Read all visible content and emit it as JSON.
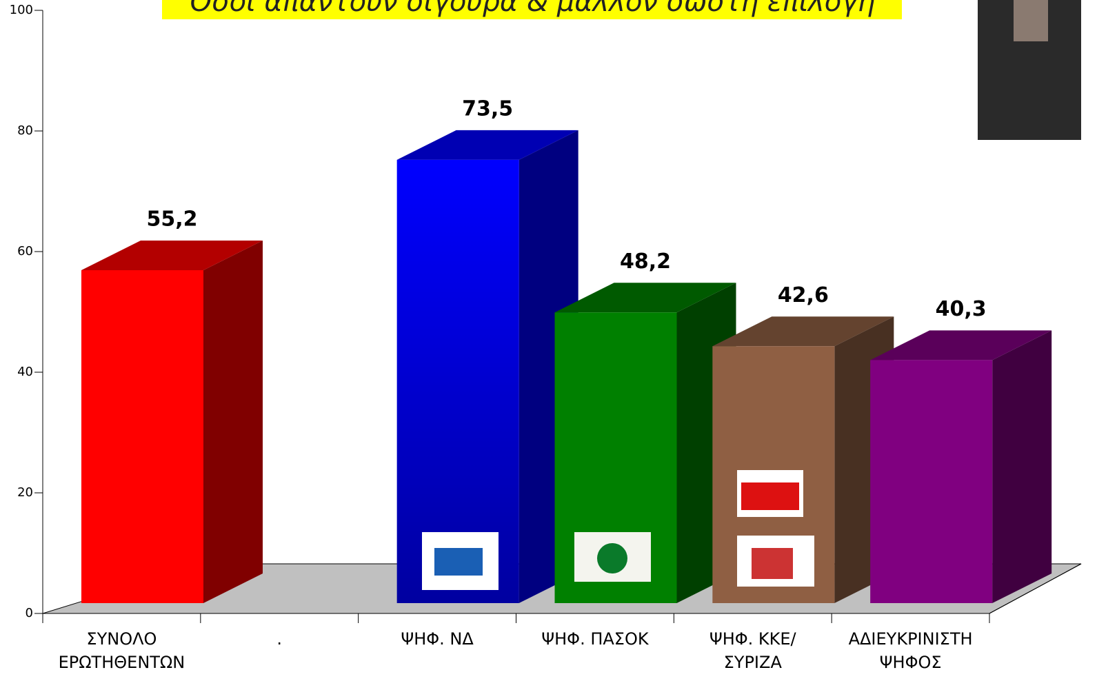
{
  "chart_data": {
    "type": "bar3d",
    "title": "Όσοι απαντούν σίγουρα & μάλλον σωστή επιλογή",
    "categories": [
      "ΣΥΝΟΛΟ\nΕΡΩΤΗΘΕΝΤΩΝ",
      ".",
      "ΨΗΦ. ΝΔ",
      "ΨΗΦ. ΠΑΣΟΚ",
      "ΨΗΦ. ΚΚΕ/\nΣΥΡΙΖΑ",
      "ΑΔΙΕΥΚΡΙΝΙΣΤΗ\nΨΗΦΟΣ"
    ],
    "values": [
      55.2,
      null,
      73.5,
      48.2,
      42.6,
      40.3
    ],
    "value_labels": [
      "55,2",
      null,
      "73,5",
      "48,2",
      "42,6",
      "40,3"
    ],
    "colors": [
      "#ff0000",
      null,
      "#0000ff",
      "#008000",
      "#8f5f43",
      "#800080"
    ],
    "ylim": [
      0,
      100
    ],
    "yticks": [
      0,
      20,
      40,
      60,
      80,
      100
    ]
  }
}
